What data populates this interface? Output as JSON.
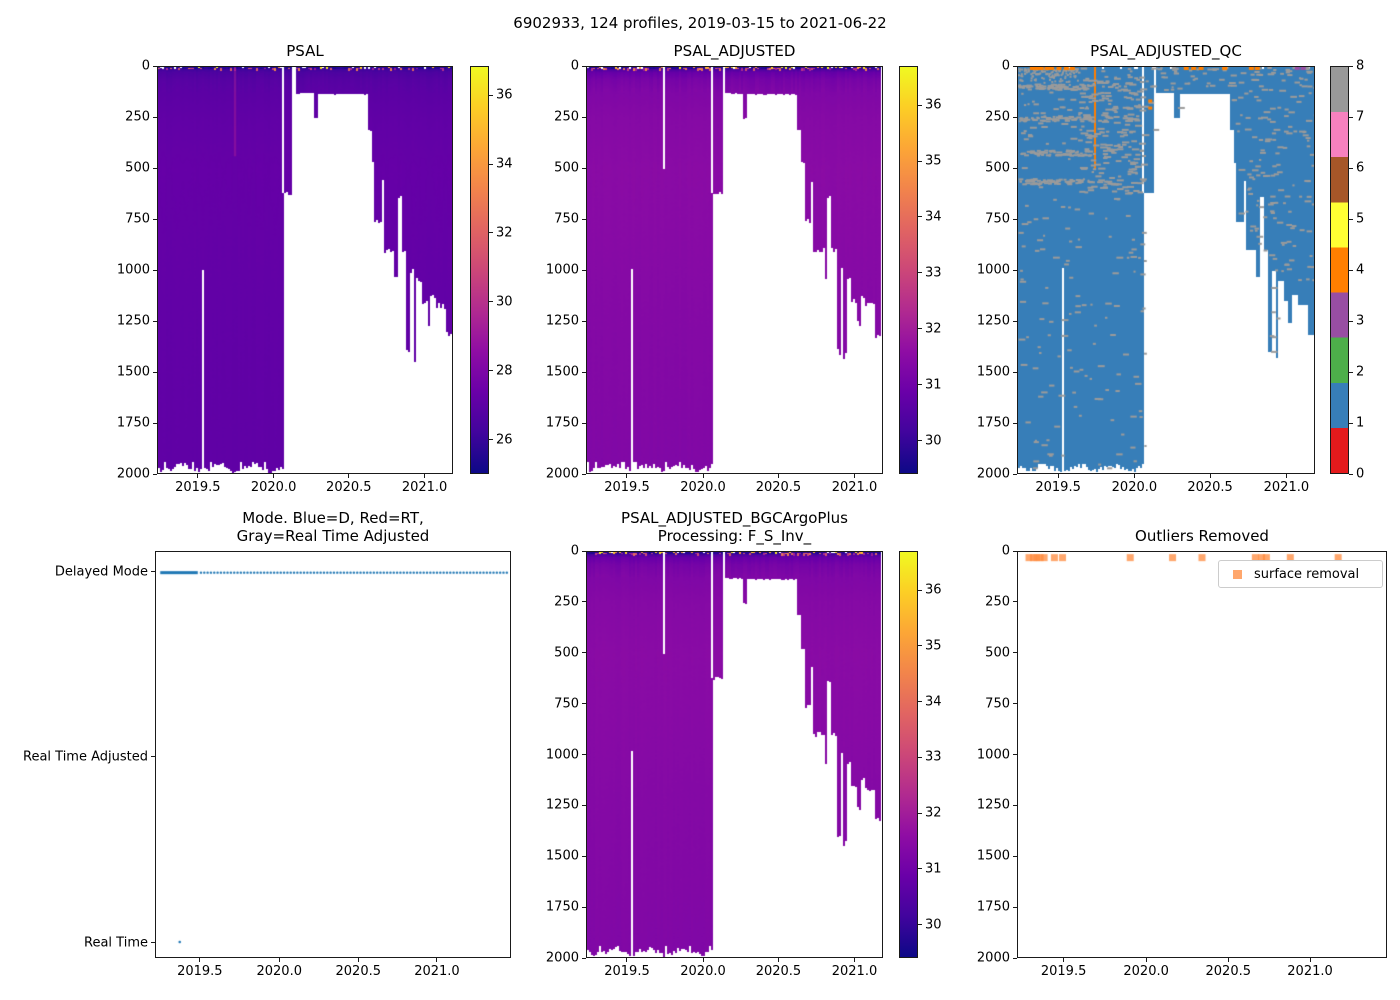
{
  "figure": {
    "suptitle": "6902933, 124 profiles, 2019-03-15 to 2021-06-22",
    "background": "#ffffff"
  },
  "colors": {
    "plasma_stops": [
      "#0d0887",
      "#41049d",
      "#6a00a8",
      "#8f0da4",
      "#b12a90",
      "#cc4778",
      "#e16462",
      "#f2844b",
      "#fca636",
      "#fcce25",
      "#f0f921"
    ],
    "qc_set1": [
      "#e41a1c",
      "#377eb8",
      "#4daf4a",
      "#984ea3",
      "#ff7f00",
      "#ffff33",
      "#a65628",
      "#f781bf",
      "#999999"
    ],
    "mode_dot": "#1f77b4",
    "outlier_marker": "rgba(255,138,60,0.75)",
    "qc_speckle": "#9b9b9b",
    "qc_body": "#377eb8",
    "qc_stripe": "#ff7f00",
    "qc_purple": "#984ea3",
    "psal_flag_streak": "rgba(172,32,150,0.45)"
  },
  "profile_envelope": {
    "comment_depth_units": "dbar, 0 at surface to 2000",
    "segments": [
      [
        0.0,
        0.018,
        0,
        1955
      ],
      [
        0.018,
        0.152,
        0,
        1985
      ],
      [
        0.152,
        0.158,
        0,
        990
      ],
      [
        0.158,
        0.258,
        0,
        1985
      ],
      [
        0.258,
        0.266,
        0,
        1985
      ],
      [
        0.266,
        0.419,
        0,
        1985
      ],
      [
        0.419,
        0.428,
        620,
        1980
      ],
      [
        0.428,
        0.458,
        0,
        620
      ],
      [
        0.458,
        0.468,
        0,
        null
      ],
      [
        0.468,
        0.53,
        0,
        128
      ],
      [
        0.53,
        0.545,
        0,
        250
      ],
      [
        0.545,
        0.715,
        0,
        132
      ],
      [
        0.715,
        0.727,
        0,
        310
      ],
      [
        0.727,
        0.738,
        0,
        470
      ],
      [
        0.738,
        0.762,
        0,
        760
      ],
      [
        0.762,
        0.768,
        0,
        560
      ],
      [
        0.768,
        0.805,
        0,
        900
      ],
      [
        0.805,
        0.815,
        0,
        1030
      ],
      [
        0.815,
        0.828,
        0,
        640
      ],
      [
        0.828,
        0.845,
        0,
        900
      ],
      [
        0.845,
        0.858,
        0,
        1400
      ],
      [
        0.858,
        0.87,
        0,
        1000
      ],
      [
        0.87,
        0.88,
        0,
        1430
      ],
      [
        0.88,
        0.898,
        0,
        1050
      ],
      [
        0.898,
        0.915,
        0,
        1150
      ],
      [
        0.915,
        0.926,
        0,
        1260
      ],
      [
        0.926,
        0.945,
        0,
        1120
      ],
      [
        0.945,
        0.978,
        0,
        1170
      ],
      [
        0.978,
        1.0,
        0,
        1320
      ]
    ],
    "adjusted_missing_column": {
      "f0": 0.258,
      "f1": 0.266,
      "d0": 0,
      "d1": 500
    }
  },
  "axes_shared": {
    "heatmap_xticks": [
      {
        "label": "2019.5",
        "f": 0.138
      },
      {
        "label": "2020.0",
        "f": 0.394
      },
      {
        "label": "2020.5",
        "f": 0.648
      },
      {
        "label": "2021.0",
        "f": 0.904
      }
    ],
    "scatter_xticks": [
      {
        "label": "2019.5",
        "f": 0.126
      },
      {
        "label": "2020.0",
        "f": 0.349
      },
      {
        "label": "2020.5",
        "f": 0.571
      },
      {
        "label": "2021.0",
        "f": 0.792
      }
    ],
    "depth_yticks": [
      {
        "label": "0",
        "f": 0.0
      },
      {
        "label": "250",
        "f": 0.125
      },
      {
        "label": "500",
        "f": 0.25
      },
      {
        "label": "750",
        "f": 0.375
      },
      {
        "label": "1000",
        "f": 0.5
      },
      {
        "label": "1250",
        "f": 0.625
      },
      {
        "label": "1500",
        "f": 0.75
      },
      {
        "label": "1750",
        "f": 0.875
      },
      {
        "label": "2000",
        "f": 1.0
      }
    ],
    "depth_range": [
      0,
      2000
    ]
  },
  "chart_data": [
    {
      "id": "psal",
      "type": "heatmap",
      "title": "PSAL",
      "cmap": "plasma_r",
      "vmin": 25.0,
      "vmax": 36.85,
      "seed": 11,
      "bright_surface": false,
      "value_profile": [
        [
          0,
          36.2
        ],
        [
          3,
          36.0
        ],
        [
          12,
          35.6
        ],
        [
          25,
          35.3
        ],
        [
          60,
          35.05
        ],
        [
          120,
          34.9
        ],
        [
          250,
          34.75
        ],
        [
          500,
          34.62
        ],
        [
          800,
          34.66
        ],
        [
          1200,
          34.72
        ],
        [
          2000,
          34.78
        ]
      ],
      "has_flag_streak": true,
      "colorbar_ticks": [
        {
          "label": "36",
          "f": 0.072
        },
        {
          "label": "34",
          "f": 0.241
        },
        {
          "label": "32",
          "f": 0.409
        },
        {
          "label": "30",
          "f": 0.578
        },
        {
          "label": "28",
          "f": 0.747
        },
        {
          "label": "26",
          "f": 0.916
        }
      ]
    },
    {
      "id": "psal_adjusted",
      "type": "heatmap",
      "title": "PSAL_ADJUSTED",
      "cmap": "plasma_r",
      "vmin": 29.4,
      "vmax": 36.7,
      "seed": 23,
      "bright_surface": true,
      "use_adjusted_gap": true,
      "value_profile": [
        [
          0,
          36.3
        ],
        [
          3,
          36.1
        ],
        [
          12,
          35.7
        ],
        [
          25,
          35.3
        ],
        [
          60,
          35.0
        ],
        [
          120,
          34.82
        ],
        [
          250,
          34.7
        ],
        [
          500,
          34.62
        ],
        [
          800,
          34.65
        ],
        [
          1200,
          34.72
        ],
        [
          2000,
          34.8
        ]
      ],
      "colorbar_ticks": [
        {
          "label": "36",
          "f": 0.096
        },
        {
          "label": "35",
          "f": 0.233
        },
        {
          "label": "34",
          "f": 0.37
        },
        {
          "label": "33",
          "f": 0.507
        },
        {
          "label": "32",
          "f": 0.644
        },
        {
          "label": "31",
          "f": 0.781
        },
        {
          "label": "30",
          "f": 0.918
        }
      ]
    },
    {
      "id": "psal_adjusted_qc",
      "type": "qc_heatmap",
      "title": "PSAL_ADJUSTED_QC",
      "seed": 37,
      "body_flag": 1,
      "speckle_flag": 8,
      "stripe_flag": 4,
      "flag_colors_0_to_8": [
        "#e41a1c",
        "#377eb8",
        "#4daf4a",
        "#984ea3",
        "#ff7f00",
        "#ffff33",
        "#a65628",
        "#f781bf",
        "#999999"
      ],
      "orange_stripe": {
        "f0": 0.258,
        "f1": 0.266,
        "d0": 0,
        "d1": 500
      },
      "orange_top_dashes": [
        0.04,
        0.055,
        0.07,
        0.09,
        0.105,
        0.13,
        0.155,
        0.175,
        0.56,
        0.585,
        0.61,
        0.69,
        0.78,
        0.8
      ],
      "orange_mid_dashes": [
        {
          "f": 0.44,
          "d": 160
        },
        {
          "f": 0.44,
          "d": 195
        }
      ],
      "purple_top_dashes": [
        0.935,
        0.955
      ],
      "colorbar_ticks": [
        {
          "label": "8",
          "f": 0.0
        },
        {
          "label": "7",
          "f": 0.125
        },
        {
          "label": "6",
          "f": 0.25
        },
        {
          "label": "5",
          "f": 0.375
        },
        {
          "label": "4",
          "f": 0.5
        },
        {
          "label": "3",
          "f": 0.625
        },
        {
          "label": "2",
          "f": 0.75
        },
        {
          "label": "1",
          "f": 0.875
        },
        {
          "label": "0",
          "f": 1.0
        }
      ]
    },
    {
      "id": "mode",
      "type": "scatter",
      "title": "Mode. Blue=D, Red=RT,\nGray=Real Time Adjusted",
      "categories": [
        {
          "label": "Delayed Mode",
          "f": 0.051
        },
        {
          "label": "Real Time Adjusted",
          "f": 0.506
        },
        {
          "label": "Real Time",
          "f": 0.963
        }
      ],
      "solid_segment": {
        "category": "Delayed Mode",
        "f0": 0.012,
        "f1": 0.118
      },
      "dotted_segment": {
        "category": "Delayed Mode",
        "f0": 0.127,
        "f1": 0.991,
        "n_dots": 93
      },
      "extra_points": [
        {
          "category": "Real Time",
          "f": 0.067
        }
      ]
    },
    {
      "id": "psal_adjusted_bgc",
      "type": "heatmap",
      "title": "PSAL_ADJUSTED_BGCArgoPlus\nProcessing: F_S_Inv_",
      "cmap": "plasma_r",
      "vmin": 29.4,
      "vmax": 36.7,
      "seed": 51,
      "bright_surface": true,
      "use_adjusted_gap": true,
      "value_profile": [
        [
          0,
          36.3
        ],
        [
          3,
          36.1
        ],
        [
          12,
          35.7
        ],
        [
          25,
          35.3
        ],
        [
          60,
          35.0
        ],
        [
          120,
          34.82
        ],
        [
          250,
          34.7
        ],
        [
          500,
          34.62
        ],
        [
          800,
          34.65
        ],
        [
          1200,
          34.72
        ],
        [
          2000,
          34.8
        ]
      ],
      "colorbar_ticks": [
        {
          "label": "36",
          "f": 0.096
        },
        {
          "label": "35",
          "f": 0.233
        },
        {
          "label": "34",
          "f": 0.37
        },
        {
          "label": "33",
          "f": 0.507
        },
        {
          "label": "32",
          "f": 0.644
        },
        {
          "label": "31",
          "f": 0.781
        },
        {
          "label": "30",
          "f": 0.918
        }
      ]
    },
    {
      "id": "outliers",
      "type": "scatter",
      "title": "Outliers Removed",
      "legend": {
        "label": "surface removal"
      },
      "marker": {
        "shape": "square",
        "size": 7
      },
      "points_f_depth": [
        [
          0.03,
          18
        ],
        [
          0.042,
          18
        ],
        [
          0.051,
          18
        ],
        [
          0.06,
          18
        ],
        [
          0.071,
          18
        ],
        [
          0.099,
          18
        ],
        [
          0.121,
          18
        ],
        [
          0.305,
          18
        ],
        [
          0.42,
          18
        ],
        [
          0.5,
          18
        ],
        [
          0.645,
          18
        ],
        [
          0.662,
          18
        ],
        [
          0.675,
          18
        ],
        [
          0.74,
          18
        ],
        [
          0.87,
          18
        ]
      ]
    }
  ]
}
